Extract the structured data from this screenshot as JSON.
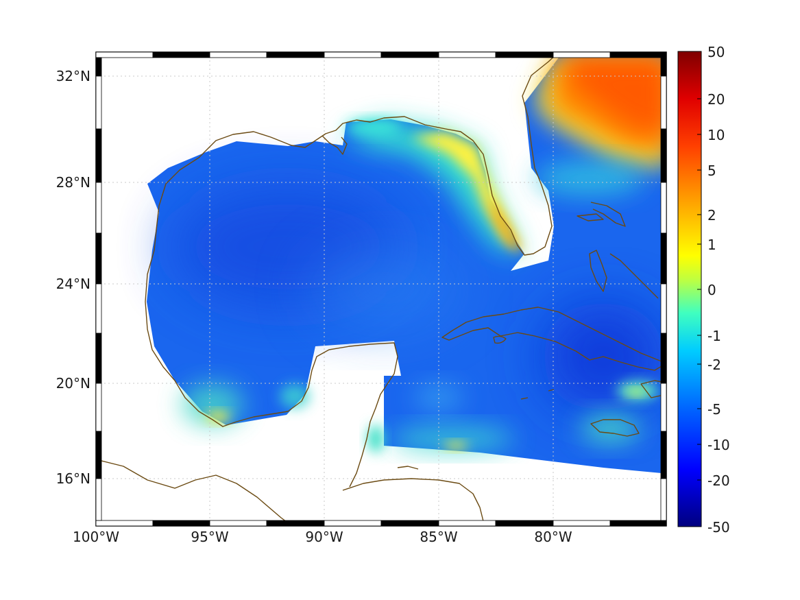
{
  "map": {
    "lon_labels": [
      "100°W",
      "95°W",
      "90°W",
      "85°W",
      "80°W"
    ],
    "lat_labels": [
      "32°N",
      "28°N",
      "24°N",
      "20°N",
      "16°N"
    ],
    "coastline_color": "#6b4a12",
    "land_color": "#ffffff",
    "gridline_style": "dotted"
  },
  "colorbar": {
    "tick_labels": [
      "50",
      "20",
      "10",
      "5",
      "2",
      "1",
      "0",
      "-1",
      "-2",
      "-5",
      "-10",
      "-20",
      "-50"
    ],
    "colormap": "jet",
    "colors": [
      "#00007f",
      "#0000ff",
      "#007fff",
      "#00ffff",
      "#7fff7f",
      "#ffff00",
      "#ff7f00",
      "#ff0000",
      "#7f0000"
    ]
  }
}
